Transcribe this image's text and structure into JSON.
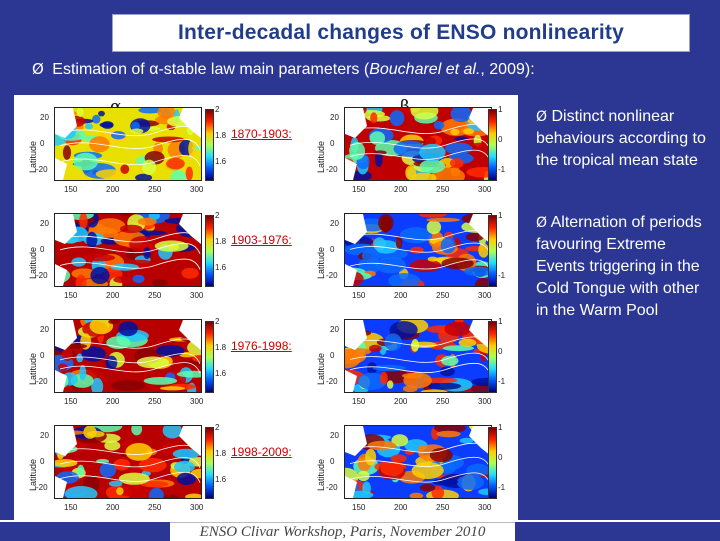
{
  "title": "Inter-decadal changes of ENSO nonlinearity",
  "subtitle": {
    "bullet": "Ø",
    "pre": "Estimation of ",
    "alpha_symbol": "α",
    "mid": "-stable law main parameters (",
    "citation": "Boucharel et al.",
    "post": ", 2009):"
  },
  "column_labels": {
    "alpha": "α",
    "beta": "β"
  },
  "periods": [
    "1870-1903:",
    "1903-1976:",
    "1976-1998:",
    "1998-2009:"
  ],
  "axis": {
    "ylabel": "Latitude",
    "yticks": [
      "20",
      "0",
      "-20"
    ],
    "xticks": [
      "150",
      "200",
      "250",
      "300"
    ]
  },
  "colorbars": {
    "alpha_ticks": [
      "2",
      "1.8",
      "1.6"
    ],
    "beta_ticks": [
      "1",
      "0",
      "-1"
    ]
  },
  "bullets": [
    {
      "marker": "Ø",
      "text": "Distinct nonlinear behaviours according to the tropical mean state"
    },
    {
      "marker": "Ø",
      "text": "Alternation of periods favouring Extreme Events triggering in the Cold Tongue with other in the Warm Pool"
    }
  ],
  "footer": "ENSO Clivar Workshop, Paris, November 2010",
  "colors": {
    "background": "#2b3793",
    "title_text": "#223c8c",
    "period_label": "#cc0000"
  }
}
